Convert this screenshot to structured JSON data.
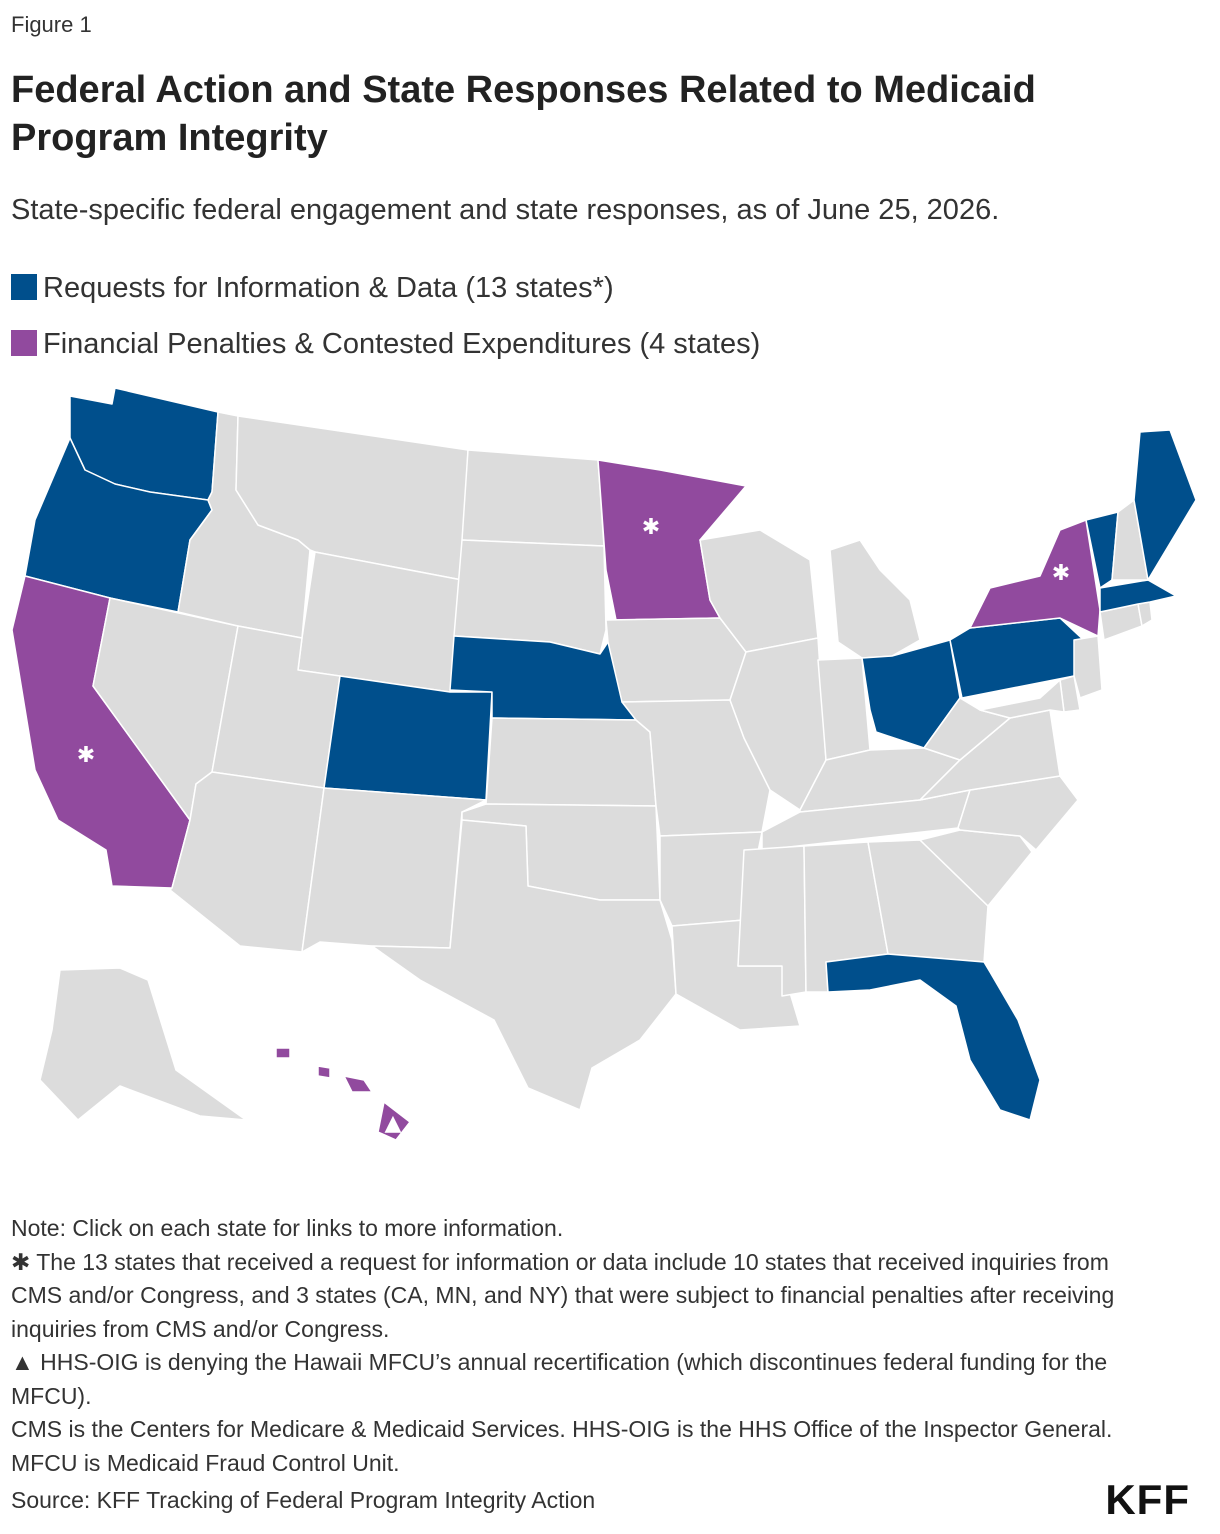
{
  "figure_label": "Figure 1",
  "title": "Federal Action and State Responses Related to Medicaid Program Integrity",
  "subtitle": "State-specific federal engagement and state responses, as of June 25, 2026.",
  "colors": {
    "requests": "#004f8c",
    "penalties": "#914a9e",
    "other": "#dcdcdc",
    "border": "#ffffff"
  },
  "legend": [
    {
      "label": "Requests for Information & Data (13 states*)",
      "color": "#004f8c"
    },
    {
      "label": "Financial Penalties & Contested Expenditures (4 states)",
      "color": "#914a9e"
    }
  ],
  "states": {
    "requests": [
      "WA",
      "OR",
      "CO",
      "NE",
      "OH",
      "PA",
      "VT",
      "ME",
      "MA",
      "FL"
    ],
    "penalties": [
      "CA",
      "MN",
      "NY",
      "HI"
    ],
    "asterisk_markers": [
      "CA",
      "MN",
      "NY"
    ],
    "triangle_markers": [
      "HI"
    ]
  },
  "markers": {
    "asterisk": "✱",
    "triangle": "▲"
  },
  "notes": [
    "Note: Click on each state for links to more information.",
    "✱ The 13 states that received a request for information or data include 10 states that received inquiries from CMS and/or Congress, and 3 states (CA, MN, and NY) that were subject to financial penalties after receiving inquiries from CMS and/or Congress.",
    "▲ HHS-OIG is denying the Hawaii MFCU’s annual recertification (which discontinues federal funding for the MFCU).",
    "CMS is the Centers for Medicare & Medicaid Services. HHS-OIG is the HHS Office of the Inspector General. MFCU is Medicaid Fraud Control Unit."
  ],
  "source": "Source: KFF Tracking of Federal Program Integrity Action",
  "logo": "KFF"
}
